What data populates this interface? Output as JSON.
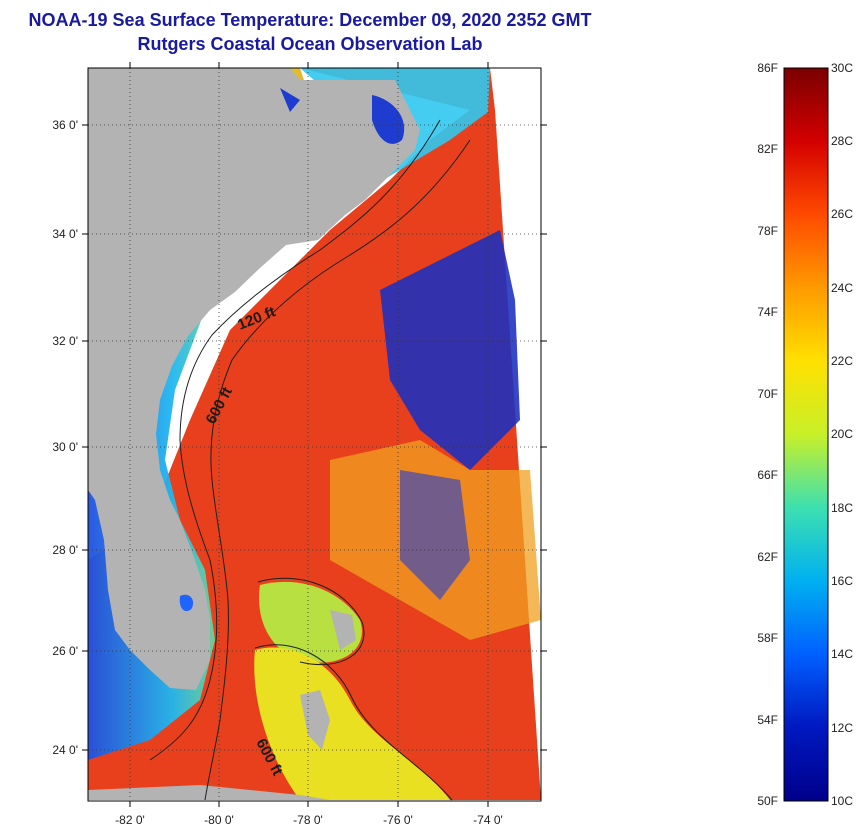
{
  "title": "NOAA-19 Sea Surface Temperature:  December 09, 2020 2352 GMT",
  "subtitle": "Rutgers Coastal Ocean Observation Lab",
  "map": {
    "lat_ticks": [
      "36 0'",
      "34 0'",
      "32 0'",
      "30 0'",
      "28 0'",
      "26 0'",
      "24 0'"
    ],
    "lon_ticks": [
      "-82 0'",
      "-80 0'",
      "-78 0'",
      "-76 0'",
      "-74 0'"
    ],
    "contour_labels": [
      "120 ft",
      "600 ft",
      "600 ft"
    ],
    "colors": {
      "land": "#b3b3b3",
      "gulf_stream": "#e8321a",
      "cold_water": "#1a2fc0",
      "frame": "#000000"
    }
  },
  "colorbar": {
    "fahrenheit": [
      "86F",
      "82F",
      "78F",
      "74F",
      "70F",
      "66F",
      "62F",
      "58F",
      "54F",
      "50F"
    ],
    "celsius": [
      "30C",
      "28C",
      "26C",
      "24C",
      "22C",
      "20C",
      "18C",
      "16C",
      "14C",
      "12C",
      "10C"
    ],
    "range_f": [
      50,
      86
    ],
    "range_c": [
      10,
      30
    ],
    "gradient": [
      "#7a0000",
      "#d40000",
      "#ff4a00",
      "#ff9a00",
      "#ffe000",
      "#c8f028",
      "#3ce0b0",
      "#00b0f0",
      "#0060ff",
      "#0018c0",
      "#00008a"
    ]
  }
}
